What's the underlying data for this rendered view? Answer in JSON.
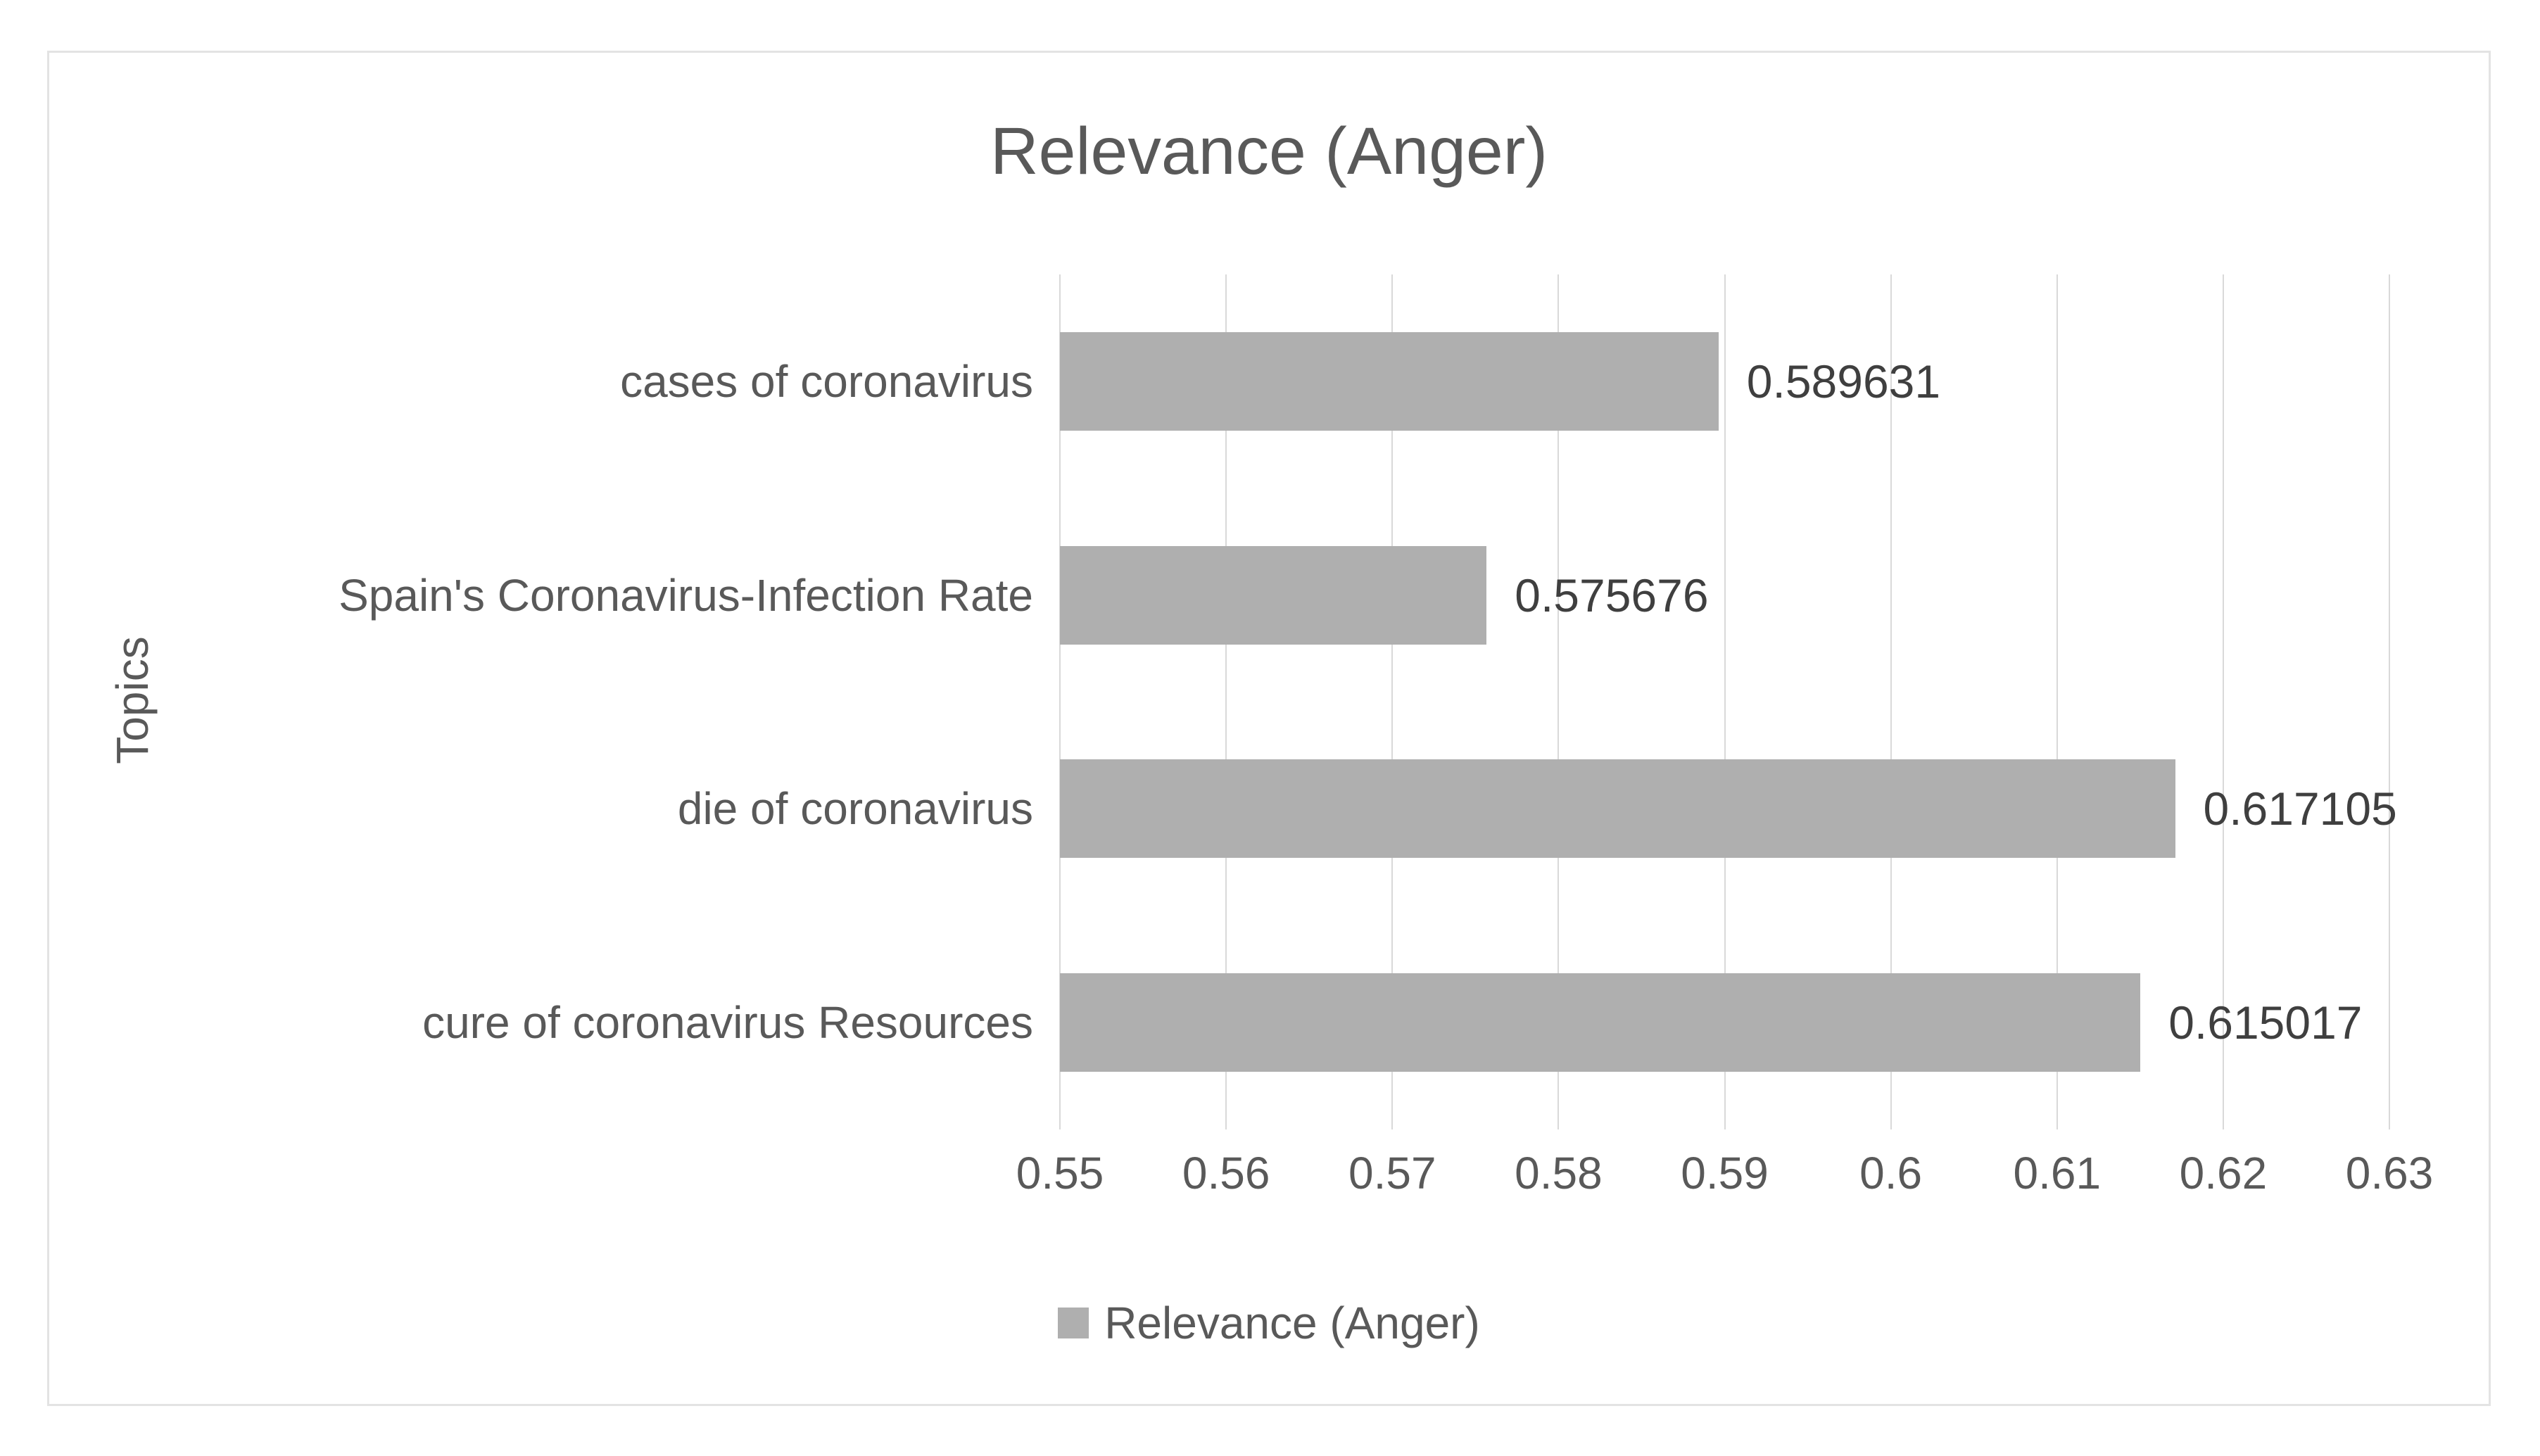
{
  "chart_data": {
    "type": "bar",
    "orientation": "horizontal",
    "title": "Relevance (Anger)",
    "xlabel": "",
    "ylabel": "Topics",
    "series_name": "Relevance (Anger)",
    "categories": [
      "cases of coronavirus",
      "Spain's Coronavirus-Infection Rate",
      "die of coronavirus",
      "cure of coronavirus Resources"
    ],
    "values": [
      0.589631,
      0.575676,
      0.617105,
      0.615017
    ],
    "value_labels": [
      "0.589631",
      "0.575676",
      "0.617105",
      "0.615017"
    ],
    "xlim": [
      0.55,
      0.63
    ],
    "x_ticks": [
      0.55,
      0.56,
      0.57,
      0.58,
      0.59,
      0.6,
      0.61,
      0.62,
      0.63
    ],
    "x_tick_labels": [
      "0.55",
      "0.56",
      "0.57",
      "0.58",
      "0.59",
      "0.6",
      "0.61",
      "0.62",
      "0.63"
    ],
    "grid": true,
    "legend_position": "bottom",
    "colors": {
      "bar": "#afafaf",
      "gridline": "#d9d9d9",
      "axis_text": "#595959",
      "value_label_text": "#3f3f3f",
      "title_text": "#595959",
      "frame_border": "#e3e3e3",
      "background": "#ffffff"
    }
  }
}
